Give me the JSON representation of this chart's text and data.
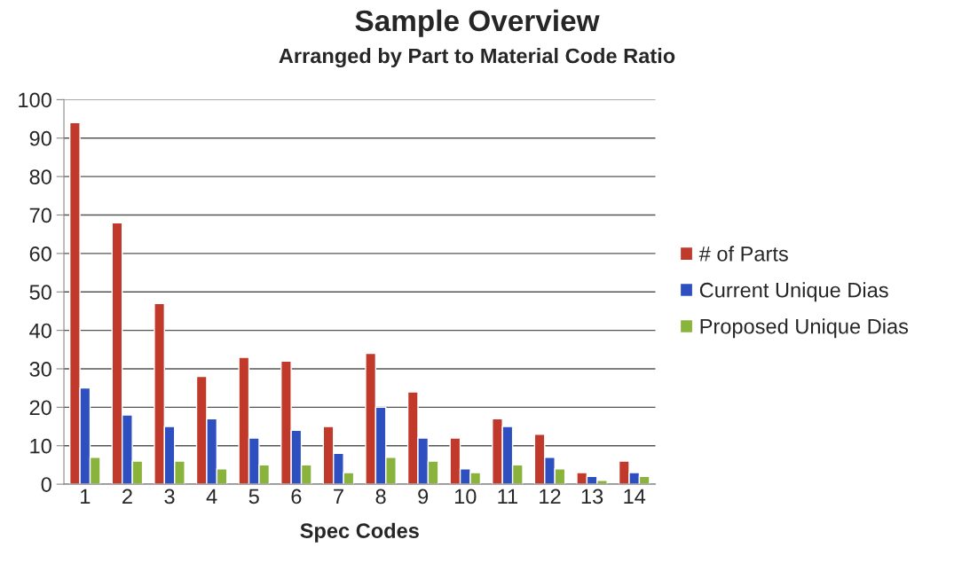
{
  "chart_data": {
    "type": "bar",
    "title": "Sample Overview",
    "subtitle": "Arranged by Part to Material Code Ratio",
    "xlabel": "Spec Codes",
    "categories": [
      "1",
      "2",
      "3",
      "4",
      "5",
      "6",
      "7",
      "8",
      "9",
      "10",
      "11",
      "12",
      "13",
      "14"
    ],
    "series": [
      {
        "name": "# of Parts",
        "color": "#c0392b",
        "values": [
          94,
          68,
          47,
          28,
          33,
          32,
          15,
          34,
          24,
          12,
          17,
          13,
          3,
          6
        ]
      },
      {
        "name": "Current Unique Dias",
        "color": "#2e4fbf",
        "values": [
          25,
          18,
          15,
          17,
          12,
          14,
          8,
          20,
          12,
          4,
          15,
          7,
          2,
          3
        ]
      },
      {
        "name": "Proposed Unique Dias",
        "color": "#8ab33c",
        "values": [
          7,
          6,
          6,
          4,
          5,
          5,
          3,
          7,
          6,
          3,
          5,
          4,
          1,
          2
        ]
      }
    ],
    "ylim": [
      0,
      100
    ],
    "yticks": [
      0,
      10,
      20,
      30,
      40,
      50,
      60,
      70,
      80,
      90,
      100
    ],
    "grid": "y",
    "legend": "right"
  }
}
